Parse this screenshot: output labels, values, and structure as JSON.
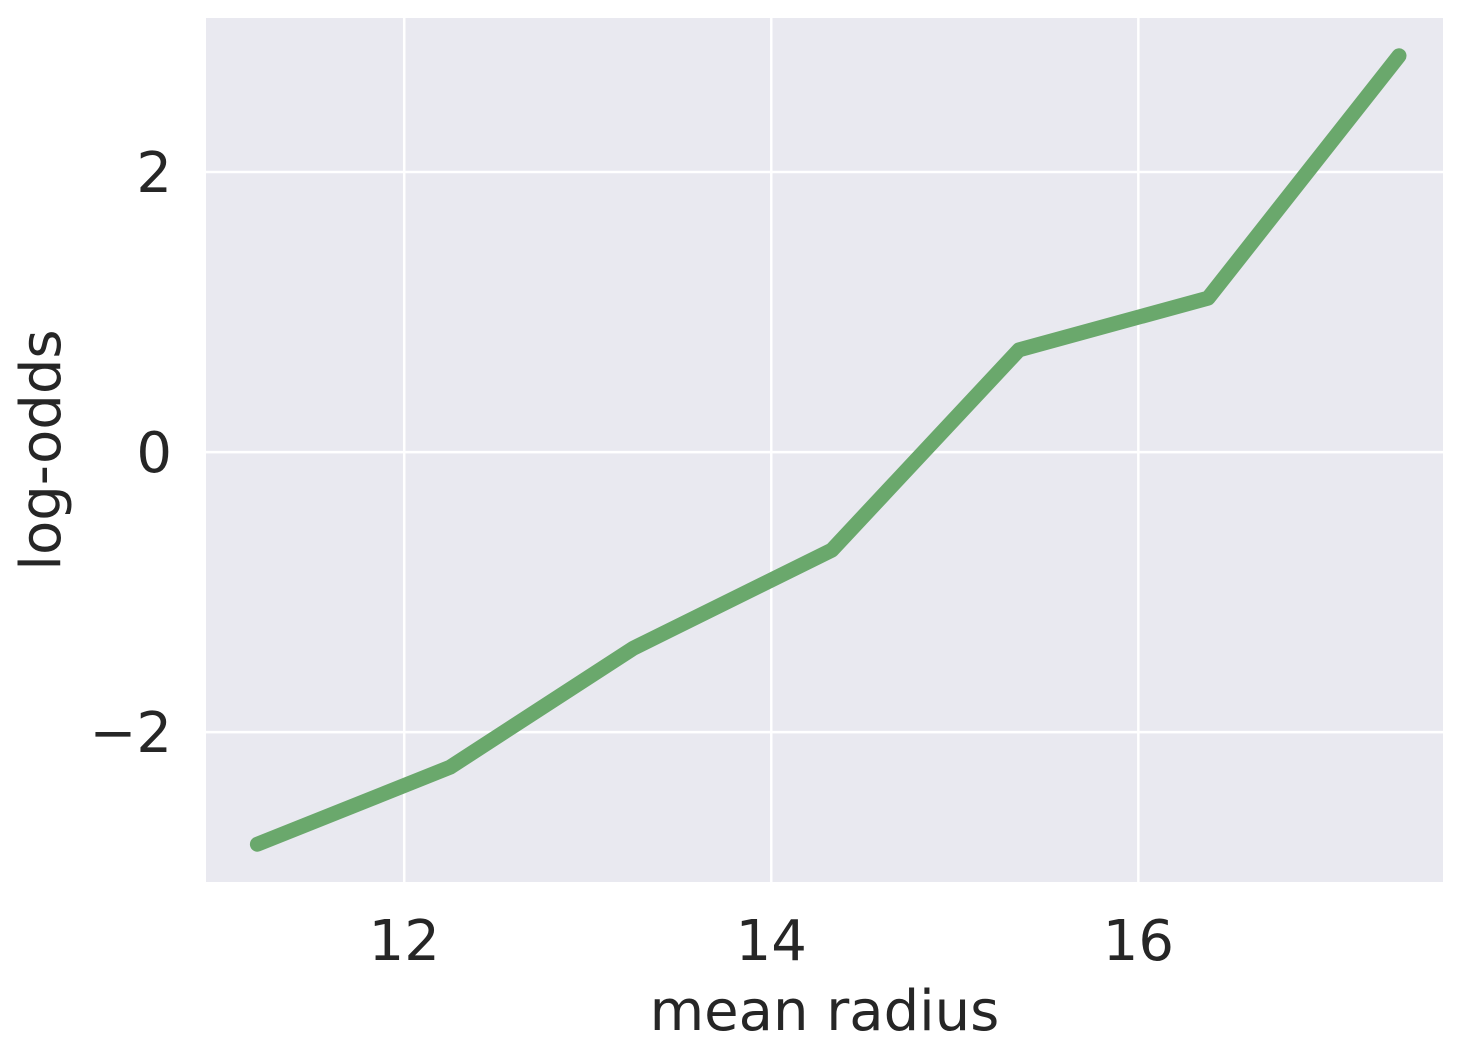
{
  "chart_data": {
    "type": "line",
    "title": "",
    "xlabel": "mean radius",
    "ylabel": "log-odds",
    "xlim": [
      10.92,
      17.66
    ],
    "ylim": [
      -3.07,
      3.1
    ],
    "xticks": [
      12,
      14,
      16
    ],
    "yticks": [
      -2,
      0,
      2
    ],
    "xtick_labels": [
      "12",
      "14",
      "16"
    ],
    "ytick_labels": [
      "−2",
      "0",
      "2"
    ],
    "grid": true,
    "legend": "none",
    "series": [
      {
        "color": "#6aa86c",
        "x": [
          11.2,
          12.25,
          13.25,
          14.33,
          15.35,
          16.38,
          17.42
        ],
        "y": [
          -2.8,
          -2.25,
          -1.4,
          -0.7,
          0.73,
          1.1,
          2.83
        ]
      }
    ]
  },
  "colors": {
    "plot_background": "#e9e9f0",
    "grid": "#ffffff",
    "text": "#262626"
  }
}
